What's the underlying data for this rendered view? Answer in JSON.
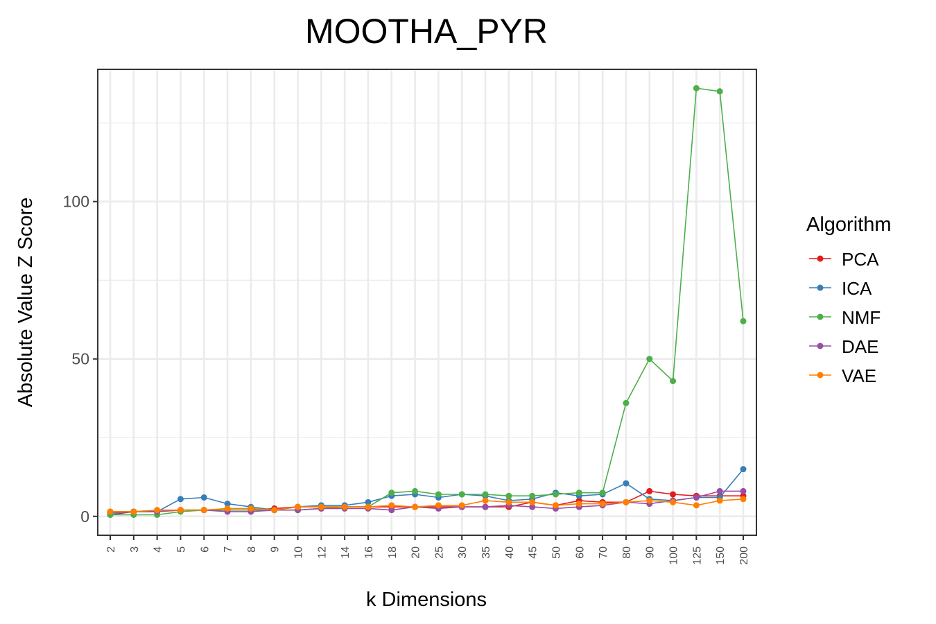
{
  "chart_data": {
    "type": "line",
    "title": "MOOTHA_PYR",
    "xlabel": "k Dimensions",
    "ylabel": "Absolute Value Z Score",
    "x": [
      "2",
      "3",
      "4",
      "5",
      "6",
      "7",
      "8",
      "9",
      "10",
      "12",
      "14",
      "16",
      "18",
      "20",
      "25",
      "30",
      "35",
      "40",
      "45",
      "50",
      "60",
      "70",
      "80",
      "90",
      "100",
      "125",
      "150",
      "200"
    ],
    "ylim": [
      -6,
      142
    ],
    "yticks": [
      0,
      50,
      100
    ],
    "grid": true,
    "legend": {
      "title": "Algorithm",
      "position": "right"
    },
    "series": [
      {
        "name": "PCA",
        "color": "#e41a1c",
        "values": [
          0.5,
          1.5,
          1.5,
          2,
          2,
          2,
          2,
          2.5,
          3,
          3,
          3,
          3,
          3,
          3,
          3,
          3,
          3,
          3,
          4.5,
          3.5,
          5,
          4.5,
          4.5,
          8,
          7,
          6.5,
          6.5,
          6.5
        ]
      },
      {
        "name": "ICA",
        "color": "#377eb8",
        "values": [
          1,
          1.5,
          1.5,
          5.5,
          6,
          4,
          3,
          2,
          3,
          3.5,
          3.5,
          4.5,
          6.5,
          7,
          6,
          7,
          6.5,
          5,
          5.5,
          7.5,
          6.5,
          7,
          10.5,
          5.5,
          5,
          6,
          6,
          15
        ]
      },
      {
        "name": "NMF",
        "color": "#4daf4a",
        "values": [
          0.5,
          0.5,
          0.5,
          1.5,
          2,
          2,
          2,
          2,
          2,
          2.5,
          3,
          3,
          7.5,
          8,
          7,
          7,
          7,
          6.5,
          6.5,
          7,
          7.5,
          7.5,
          36,
          50,
          43,
          136,
          135,
          62
        ]
      },
      {
        "name": "DAE",
        "color": "#984ea3",
        "values": [
          1.5,
          1.5,
          1.5,
          2,
          2,
          1.5,
          1.5,
          2,
          2,
          2.5,
          2.5,
          2.5,
          2,
          3,
          2.5,
          3,
          3,
          3.5,
          3,
          2.5,
          3,
          3.5,
          4.5,
          4,
          5,
          6,
          8,
          8
        ]
      },
      {
        "name": "VAE",
        "color": "#ff7f00",
        "values": [
          1.5,
          1.5,
          2,
          2,
          2,
          2.5,
          2.5,
          2,
          3,
          3,
          3,
          3,
          3.5,
          3,
          3.5,
          3.5,
          5,
          4.5,
          4.5,
          3.5,
          4,
          4,
          4.5,
          5,
          4.5,
          3.5,
          5,
          5.5
        ]
      }
    ]
  }
}
